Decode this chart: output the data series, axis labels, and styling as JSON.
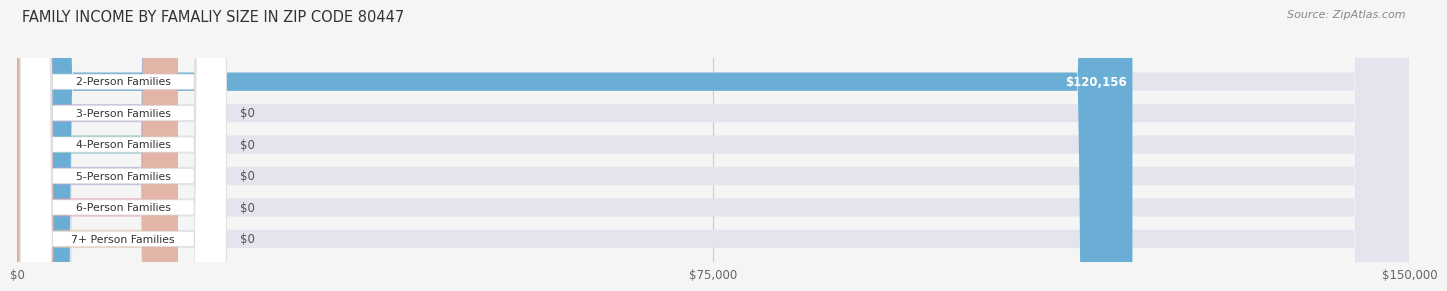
{
  "title": "FAMILY INCOME BY FAMALIY SIZE IN ZIP CODE 80447",
  "source": "Source: ZipAtlas.com",
  "categories": [
    "2-Person Families",
    "3-Person Families",
    "4-Person Families",
    "5-Person Families",
    "6-Person Families",
    "7+ Person Families"
  ],
  "values": [
    120156,
    0,
    0,
    0,
    0,
    0
  ],
  "bar_colors": [
    "#6aaed6",
    "#c4a8d4",
    "#5bbcb0",
    "#a8a8d8",
    "#f48fb1",
    "#f5c897"
  ],
  "xlim": [
    0,
    150000
  ],
  "xticks": [
    0,
    75000,
    150000
  ],
  "xticklabels": [
    "$0",
    "$75,000",
    "$150,000"
  ],
  "value_label": "$120,156",
  "background_color": "#f5f5f5",
  "bar_background_color": "#e4e4ee",
  "title_fontsize": 10.5,
  "source_fontsize": 8,
  "tick_fontsize": 8.5,
  "bar_height": 0.58
}
